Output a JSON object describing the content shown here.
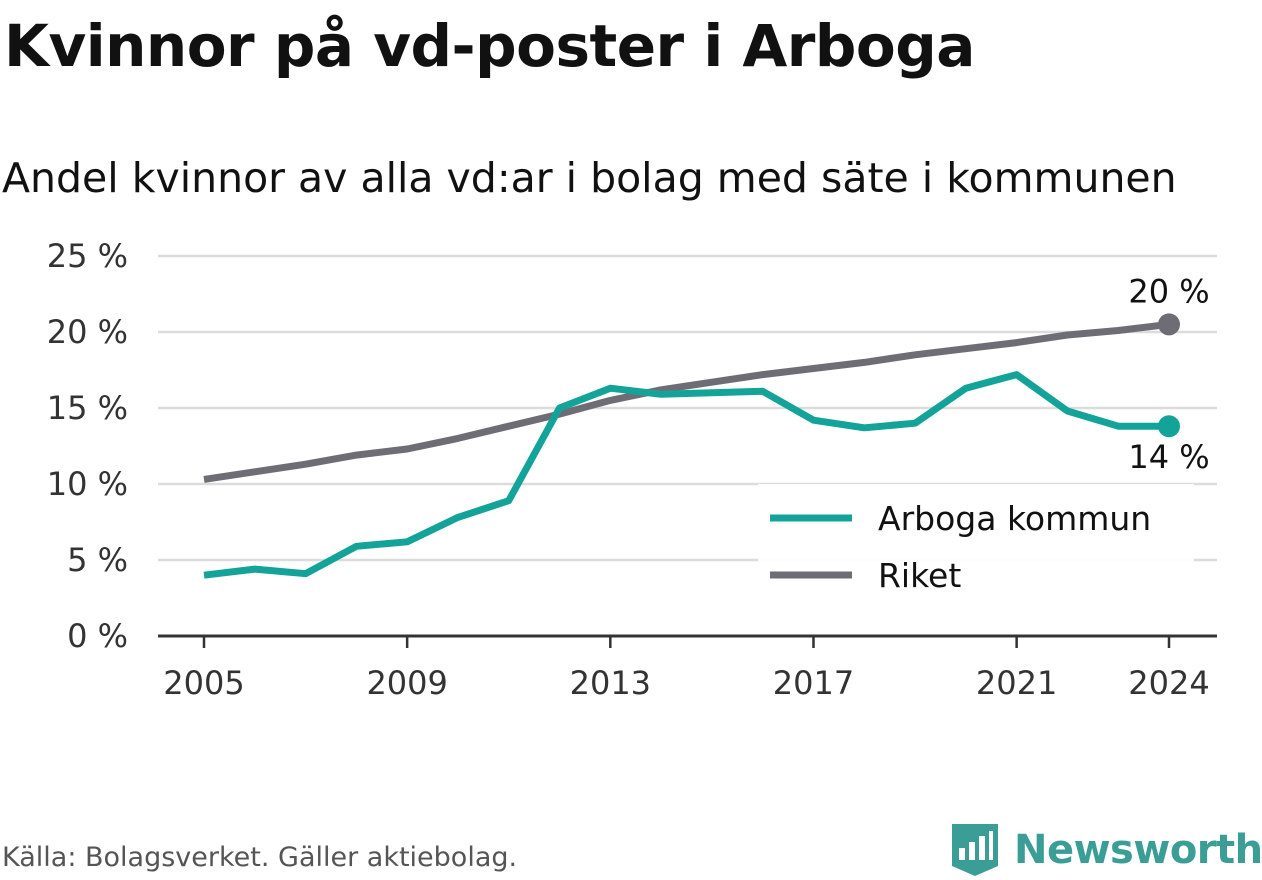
{
  "header": {
    "title": "Kvinnor på vd-poster i Arboga",
    "subtitle": "Andel kvinnor av alla vd:ar i bolag med säte i kommunen"
  },
  "footer": {
    "source": "Källa: Bolagsverket. Gäller aktiebolag.",
    "brand": "Newsworthy",
    "brand_icon": "newsworthy-logo-icon"
  },
  "colors": {
    "arboga": "#14a398",
    "riket": "#6e6d75",
    "grid": "#dcdcdc",
    "axis": "#333333",
    "brand": "#3a9e96"
  },
  "chart_data": {
    "type": "line",
    "x": [
      2005,
      2006,
      2007,
      2008,
      2009,
      2010,
      2011,
      2012,
      2013,
      2014,
      2015,
      2016,
      2017,
      2018,
      2019,
      2020,
      2021,
      2022,
      2023,
      2024
    ],
    "xticks": [
      2005,
      2009,
      2013,
      2017,
      2021,
      2024
    ],
    "xlim": [
      2004,
      2025
    ],
    "ylim": [
      0,
      25
    ],
    "yticks": [
      0,
      5,
      10,
      15,
      20,
      25
    ],
    "ytick_labels": [
      "0 %",
      "5 %",
      "10 %",
      "15 %",
      "20 %",
      "25 %"
    ],
    "grid": true,
    "legend_position": "lower-right",
    "series": [
      {
        "name": "Arboga kommun",
        "color": "#14a398",
        "end_label": "14 %",
        "values": [
          4.0,
          4.4,
          4.1,
          5.9,
          6.2,
          7.8,
          8.9,
          15.0,
          16.3,
          15.9,
          16.0,
          16.1,
          14.2,
          13.7,
          14.0,
          16.3,
          17.2,
          14.8,
          13.8,
          13.8
        ]
      },
      {
        "name": "Riket",
        "color": "#6e6d75",
        "end_label": "20 %",
        "values": [
          10.3,
          10.8,
          11.3,
          11.9,
          12.3,
          13.0,
          13.8,
          14.6,
          15.5,
          16.2,
          16.7,
          17.2,
          17.6,
          18.0,
          18.5,
          18.9,
          19.3,
          19.8,
          20.1,
          20.5
        ]
      }
    ]
  }
}
